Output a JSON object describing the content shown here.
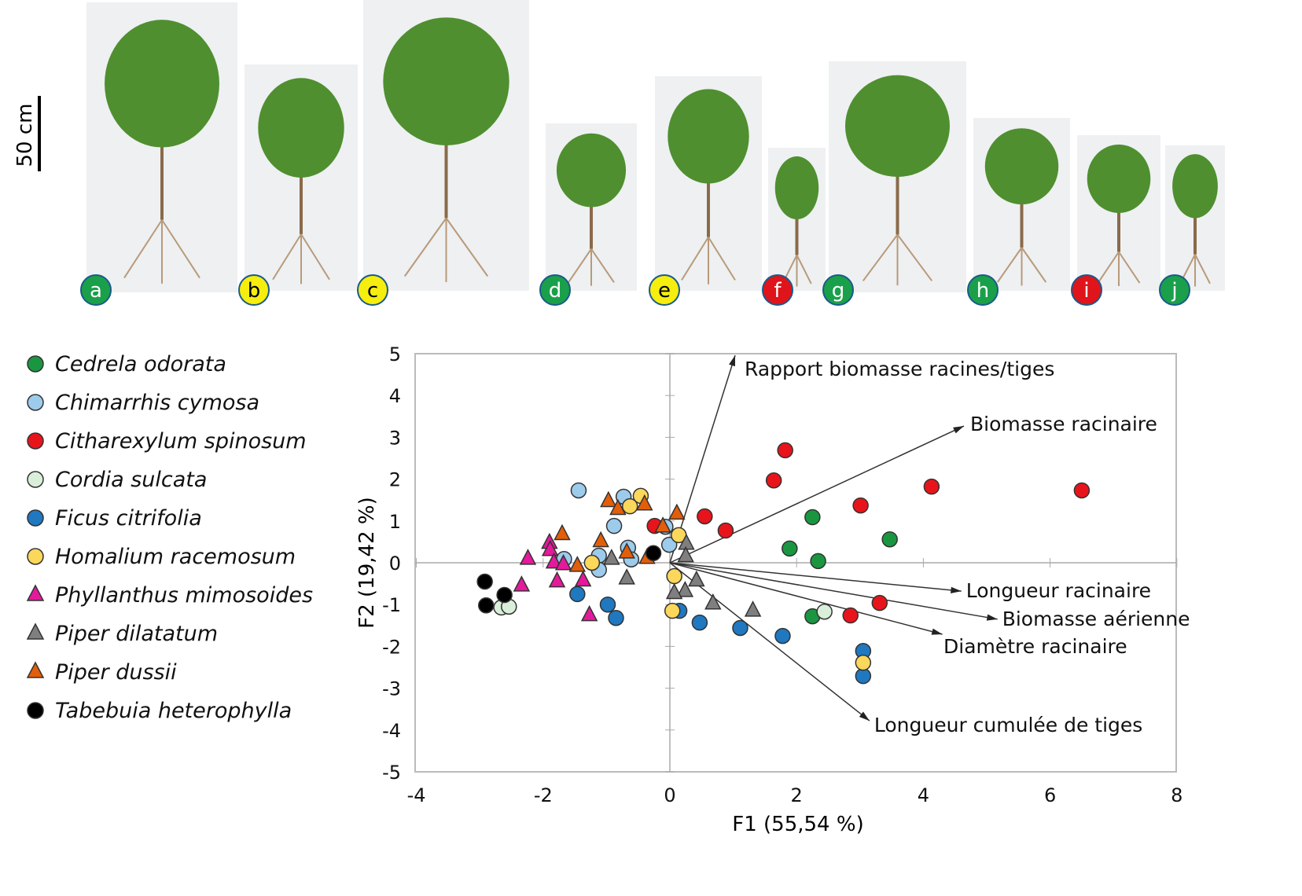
{
  "scale_bar": {
    "label": "50 cm"
  },
  "photos": [
    {
      "letter": "a",
      "color": "#1aa04a"
    },
    {
      "letter": "b",
      "color": "#f5ee0f"
    },
    {
      "letter": "c",
      "color": "#f5ee0f"
    },
    {
      "letter": "d",
      "color": "#1aa04a"
    },
    {
      "letter": "e",
      "color": "#f5ee0f"
    },
    {
      "letter": "f",
      "color": "#e0141b"
    },
    {
      "letter": "g",
      "color": "#1aa04a"
    },
    {
      "letter": "h",
      "color": "#1aa04a"
    },
    {
      "letter": "i",
      "color": "#e0141b"
    },
    {
      "letter": "j",
      "color": "#1aa04a"
    }
  ],
  "chart_data": {
    "type": "scatter",
    "xlabel": "F1 (55,54 %)",
    "ylabel": "F2 (19,42 %)",
    "xlim": [
      -4,
      8
    ],
    "ylim": [
      -5,
      5
    ],
    "xticks": [
      "-4",
      "-2",
      "0",
      "2",
      "4",
      "6",
      "8"
    ],
    "yticks": [
      "5",
      "4",
      "3",
      "2",
      "1",
      "0",
      "-1",
      "-2",
      "-3",
      "-4",
      "-5"
    ],
    "grid": false,
    "legend_placement": "left",
    "series": [
      {
        "name": "Cedrela odorata",
        "marker": "circle",
        "color": "#1a9641",
        "points": [
          [
            2.25,
            1.09
          ],
          [
            1.89,
            0.34
          ],
          [
            2.34,
            0.04
          ],
          [
            3.47,
            0.56
          ],
          [
            2.25,
            -1.28
          ]
        ]
      },
      {
        "name": "Chimarrhis cymosa",
        "marker": "circle",
        "color": "#9dcbec",
        "points": [
          [
            -1.44,
            1.73
          ],
          [
            -0.73,
            1.58
          ],
          [
            -0.88,
            0.88
          ],
          [
            -0.66,
            0.36
          ],
          [
            -1.67,
            0.09
          ],
          [
            -1.12,
            0.17
          ],
          [
            -1.12,
            -0.17
          ],
          [
            -0.61,
            0.08
          ],
          [
            -0.07,
            0.86
          ],
          [
            -0.01,
            0.43
          ]
        ]
      },
      {
        "name": "Citharexylum spinosum",
        "marker": "circle",
        "color": "#e8141b",
        "points": [
          [
            1.82,
            2.69
          ],
          [
            1.64,
            1.97
          ],
          [
            4.13,
            1.82
          ],
          [
            6.5,
            1.73
          ],
          [
            3.01,
            1.37
          ],
          [
            0.55,
            1.11
          ],
          [
            0.88,
            0.77
          ],
          [
            -0.24,
            0.88
          ],
          [
            3.31,
            -0.96
          ],
          [
            2.85,
            -1.26
          ]
        ]
      },
      {
        "name": "Cordia sulcata",
        "marker": "circle",
        "color": "#d9efd9",
        "points": [
          [
            -2.66,
            -1.07
          ],
          [
            -2.54,
            -1.05
          ],
          [
            2.44,
            -1.17
          ]
        ]
      },
      {
        "name": "Ficus citrifolia",
        "marker": "circle",
        "color": "#1f78c0",
        "points": [
          [
            -1.46,
            -0.75
          ],
          [
            -0.98,
            -1.0
          ],
          [
            -0.85,
            -1.32
          ],
          [
            0.15,
            -1.15
          ],
          [
            0.47,
            -1.43
          ],
          [
            1.11,
            -1.56
          ],
          [
            1.78,
            -1.75
          ],
          [
            3.05,
            -2.11
          ],
          [
            3.05,
            -2.71
          ]
        ]
      },
      {
        "name": "Homalium racemosum",
        "marker": "circle",
        "color": "#fbd75b",
        "points": [
          [
            -0.46,
            1.6
          ],
          [
            -0.63,
            1.35
          ],
          [
            0.14,
            0.66
          ],
          [
            -1.23,
            0.0
          ],
          [
            0.07,
            -0.32
          ],
          [
            0.04,
            -1.15
          ],
          [
            3.05,
            -2.39
          ]
        ]
      },
      {
        "name": "Phyllanthus mimosoides",
        "marker": "triangle",
        "color": "#e5199b",
        "points": [
          [
            -1.9,
            0.47
          ],
          [
            -1.89,
            0.3
          ],
          [
            -2.24,
            0.09
          ],
          [
            -1.83,
            0.0
          ],
          [
            -1.68,
            -0.04
          ],
          [
            -2.34,
            -0.55
          ],
          [
            -1.78,
            -0.45
          ],
          [
            -1.37,
            -0.43
          ],
          [
            -1.27,
            -1.26
          ]
        ]
      },
      {
        "name": "Piper dilatatum",
        "marker": "triangle",
        "color": "#7f7f7f",
        "points": [
          [
            -0.92,
            0.09
          ],
          [
            -0.68,
            -0.38
          ],
          [
            0.26,
            0.45
          ],
          [
            0.25,
            0.15
          ],
          [
            0.24,
            -0.68
          ],
          [
            0.07,
            -0.73
          ],
          [
            0.42,
            -0.43
          ],
          [
            0.68,
            -0.98
          ],
          [
            1.31,
            -1.15
          ]
        ]
      },
      {
        "name": "Piper dussii",
        "marker": "triangle",
        "color": "#e35e0a",
        "points": [
          [
            -0.97,
            1.47
          ],
          [
            -0.82,
            1.28
          ],
          [
            -0.4,
            1.39
          ],
          [
            0.11,
            1.17
          ],
          [
            -1.7,
            0.68
          ],
          [
            -1.09,
            0.51
          ],
          [
            -1.46,
            -0.08
          ],
          [
            -0.68,
            0.24
          ],
          [
            -0.36,
            0.11
          ],
          [
            -0.11,
            0.86
          ]
        ]
      },
      {
        "name": "Tabebuia heterophylla",
        "marker": "circle",
        "color": "#000000",
        "points": [
          [
            -2.92,
            -0.45
          ],
          [
            -2.9,
            -1.02
          ],
          [
            -2.61,
            -0.77
          ],
          [
            -0.26,
            0.23
          ]
        ]
      }
    ],
    "vectors": [
      {
        "label": "Rapport biomasse racines/tiges",
        "x": 1.03,
        "y": 4.96
      },
      {
        "label": "Biomasse racinaire",
        "x": 4.64,
        "y": 3.27
      },
      {
        "label": "Longueur racinaire",
        "x": 4.6,
        "y": -0.68
      },
      {
        "label": "Biomasse aérienne",
        "x": 5.17,
        "y": -1.35
      },
      {
        "label": "Diamètre racinaire",
        "x": 4.3,
        "y": -1.71
      },
      {
        "label": "Longueur cumulée de tiges",
        "x": 3.15,
        "y": -3.78
      }
    ]
  }
}
